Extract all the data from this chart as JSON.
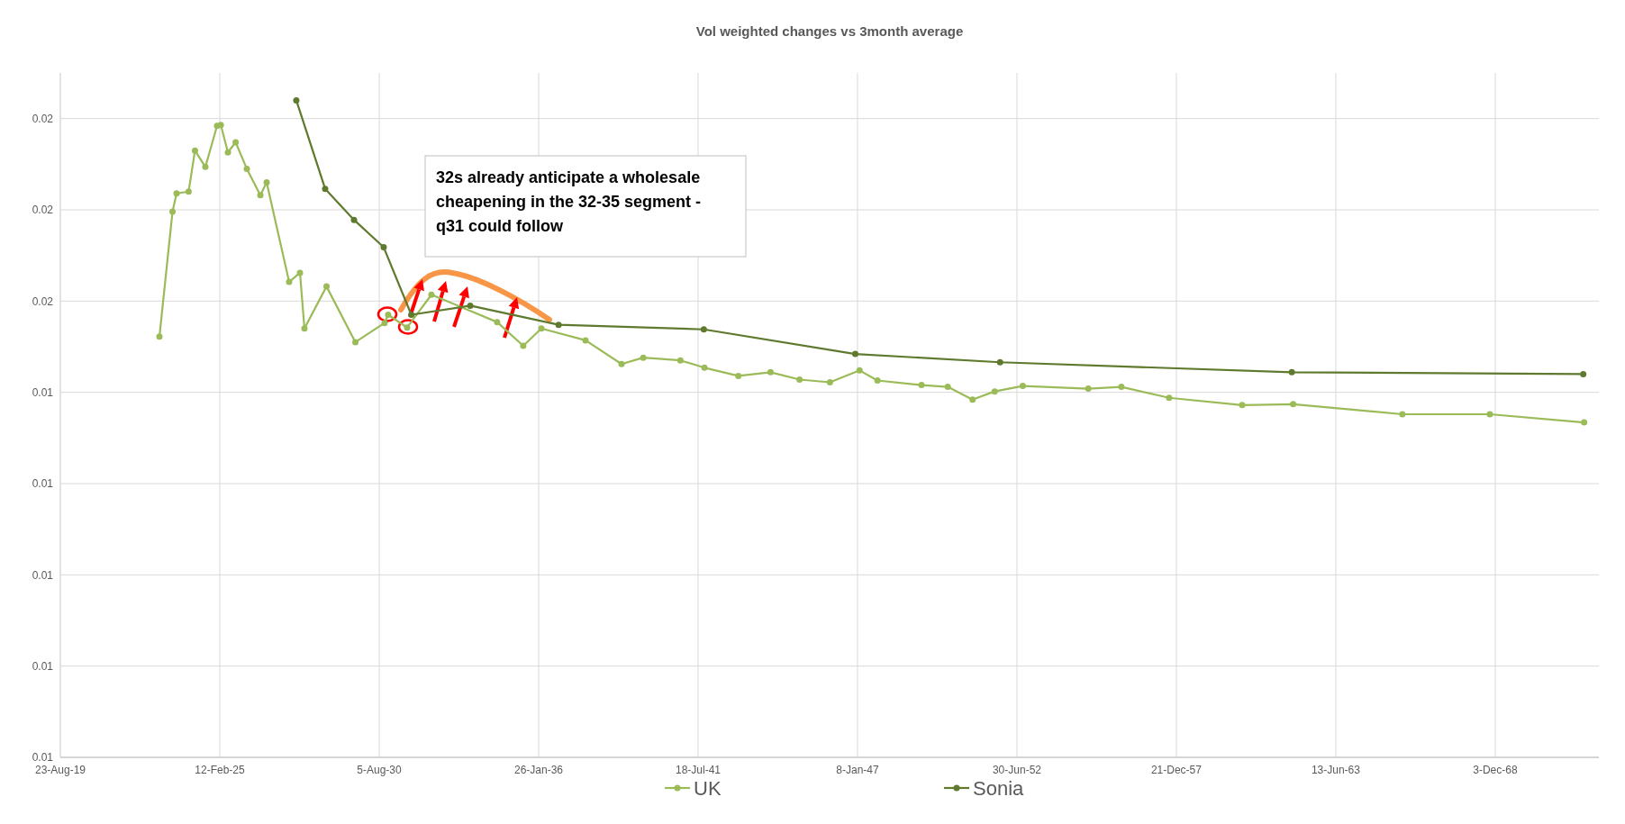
{
  "chart_data": {
    "type": "line",
    "title": "Vol weighted changes vs 3month average",
    "grid": true,
    "legend": "bottom",
    "marker": "circle",
    "line_style": "solid",
    "xlim": [
      "2019-08-23",
      "2072-06-25"
    ],
    "xticks": [
      {
        "value": "2019-08-23",
        "label": "23-Aug-19"
      },
      {
        "value": "2025-02-12",
        "label": "12-Feb-25"
      },
      {
        "value": "2030-08-05",
        "label": "5-Aug-30"
      },
      {
        "value": "2036-01-26",
        "label": "26-Jan-36"
      },
      {
        "value": "2041-07-18",
        "label": "18-Jul-41"
      },
      {
        "value": "2047-01-08",
        "label": "8-Jan-47"
      },
      {
        "value": "2052-06-30",
        "label": "30-Jun-52"
      },
      {
        "value": "2057-12-21",
        "label": "21-Dec-57"
      },
      {
        "value": "2063-06-13",
        "label": "13-Jun-63"
      },
      {
        "value": "2068-12-03",
        "label": "3-Dec-68"
      }
    ],
    "ylim": [
      0.01,
      0.0175
    ],
    "yticks": [
      {
        "value": 0.01,
        "label": "0.01"
      },
      {
        "value": 0.011,
        "label": "0.01"
      },
      {
        "value": 0.012,
        "label": "0.01"
      },
      {
        "value": 0.013,
        "label": "0.01"
      },
      {
        "value": 0.014,
        "label": "0.01"
      },
      {
        "value": 0.015,
        "label": "0.02"
      },
      {
        "value": 0.016,
        "label": "0.02"
      },
      {
        "value": 0.017,
        "label": "0.02"
      }
    ],
    "series": [
      {
        "name": "UK",
        "color": "#9bbb59",
        "x": [
          "2023-01-17",
          "2023-06-30",
          "2023-08-20",
          "2024-01-18",
          "2024-04-07",
          "2024-08-15",
          "2025-01-09",
          "2025-02-25",
          "2025-05-25",
          "2025-08-30",
          "2026-01-17",
          "2026-07-06",
          "2026-09-23",
          "2027-07-02",
          "2027-11-15",
          "2028-01-10",
          "2028-10-13",
          "2029-10-10",
          "2030-10-11",
          "2030-11-25",
          "2031-07-21",
          "2032-05-21",
          "2034-08-23",
          "2035-07-17",
          "2036-02-29",
          "2037-09-05",
          "2038-12-01",
          "2039-08-30",
          "2040-12-08",
          "2041-10-06",
          "2042-12-05",
          "2044-01-13",
          "2045-01-11",
          "2046-01-27",
          "2047-02-03",
          "2047-09-15",
          "2049-03-21",
          "2050-02-13",
          "2050-12-21",
          "2051-09-24",
          "2052-09-11",
          "2054-12-12",
          "2056-01-31",
          "2057-09-21",
          "2060-03-25",
          "2061-12-25",
          "2065-09-25",
          "2068-09-26",
          "2071-12-23"
        ],
        "values": [
          0.01461,
          0.01598,
          0.01618,
          0.0162,
          0.01665,
          0.01647,
          0.01692,
          0.01693,
          0.01663,
          0.01674,
          0.01645,
          0.01616,
          0.0163,
          0.01521,
          0.01531,
          0.0147,
          0.01516,
          0.01455,
          0.01476,
          0.01485,
          0.01471,
          0.01507,
          0.01477,
          0.01451,
          0.0147,
          0.01457,
          0.01431,
          0.01438,
          0.01435,
          0.01427,
          0.01418,
          0.01422,
          0.01414,
          0.01411,
          0.01424,
          0.01413,
          0.01408,
          0.01406,
          0.01392,
          0.01401,
          0.01407,
          0.01404,
          0.01406,
          0.01394,
          0.01386,
          0.01387,
          0.01376,
          0.01376,
          0.01367
        ]
      },
      {
        "name": "Sonia",
        "color": "#5f7a2e",
        "x": [
          "2027-09-30",
          "2028-09-26",
          "2029-09-23",
          "2030-09-30",
          "2031-09-12",
          "2033-09-20",
          "2036-10-02",
          "2041-09-28",
          "2046-12-11",
          "2051-12-01",
          "2061-12-08",
          "2071-12-12"
        ],
        "values": [
          0.0172,
          0.01623,
          0.01589,
          0.01559,
          0.01485,
          0.01495,
          0.01474,
          0.01469,
          0.01442,
          0.01433,
          0.01422,
          0.0142
        ]
      }
    ],
    "annotations": [
      "32s already anticipate a wholesale cheapening in the 32-35 segment - q31 could follow"
    ]
  }
}
